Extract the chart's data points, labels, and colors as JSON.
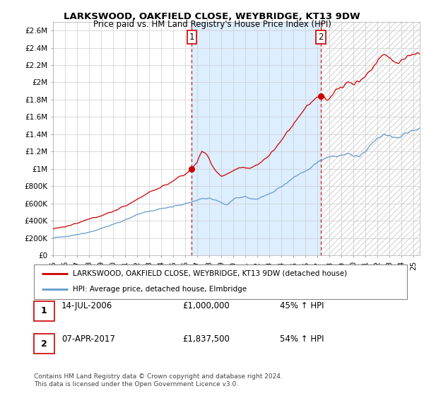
{
  "title1": "LARKSWOOD, OAKFIELD CLOSE, WEYBRIDGE, KT13 9DW",
  "title2": "Price paid vs. HM Land Registry's House Price Index (HPI)",
  "ylabel_ticks": [
    "£0",
    "£200K",
    "£400K",
    "£600K",
    "£800K",
    "£1M",
    "£1.2M",
    "£1.4M",
    "£1.6M",
    "£1.8M",
    "£2M",
    "£2.2M",
    "£2.4M",
    "£2.6M"
  ],
  "ytick_values": [
    0,
    200000,
    400000,
    600000,
    800000,
    1000000,
    1200000,
    1400000,
    1600000,
    1800000,
    2000000,
    2200000,
    2400000,
    2600000
  ],
  "ylim": [
    0,
    2700000
  ],
  "xlim_start": 1995.0,
  "xlim_end": 2025.5,
  "xtick_years": [
    1995,
    1996,
    1997,
    1998,
    1999,
    2000,
    2001,
    2002,
    2003,
    2004,
    2005,
    2006,
    2007,
    2008,
    2009,
    2010,
    2011,
    2012,
    2013,
    2014,
    2015,
    2016,
    2017,
    2018,
    2019,
    2020,
    2021,
    2022,
    2023,
    2024,
    2025
  ],
  "xtick_labels": [
    "95",
    "96",
    "97",
    "98",
    "99",
    "00",
    "01",
    "02",
    "03",
    "04",
    "05",
    "06",
    "07",
    "08",
    "09",
    "10",
    "11",
    "12",
    "13",
    "14",
    "15",
    "16",
    "17",
    "18",
    "19",
    "20",
    "21",
    "22",
    "23",
    "24",
    "25"
  ],
  "red_line_color": "#cc0000",
  "blue_line_color": "#6699cc",
  "shade_color": "#ddeeff",
  "marker1_x": 2006.54,
  "marker1_y": 1000000,
  "marker2_x": 2017.27,
  "marker2_y": 1837500,
  "legend_red": "LARKSWOOD, OAKFIELD CLOSE, WEYBRIDGE, KT13 9DW (detached house)",
  "legend_blue": "HPI: Average price, detached house, Elmbridge",
  "table_row1": [
    "1",
    "14-JUL-2006",
    "£1,000,000",
    "45% ↑ HPI"
  ],
  "table_row2": [
    "2",
    "07-APR-2017",
    "£1,837,500",
    "54% ↑ HPI"
  ],
  "footer": "Contains HM Land Registry data © Crown copyright and database right 2024.\nThis data is licensed under the Open Government Licence v3.0.",
  "bg_color": "#ffffff",
  "grid_color": "#cccccc"
}
